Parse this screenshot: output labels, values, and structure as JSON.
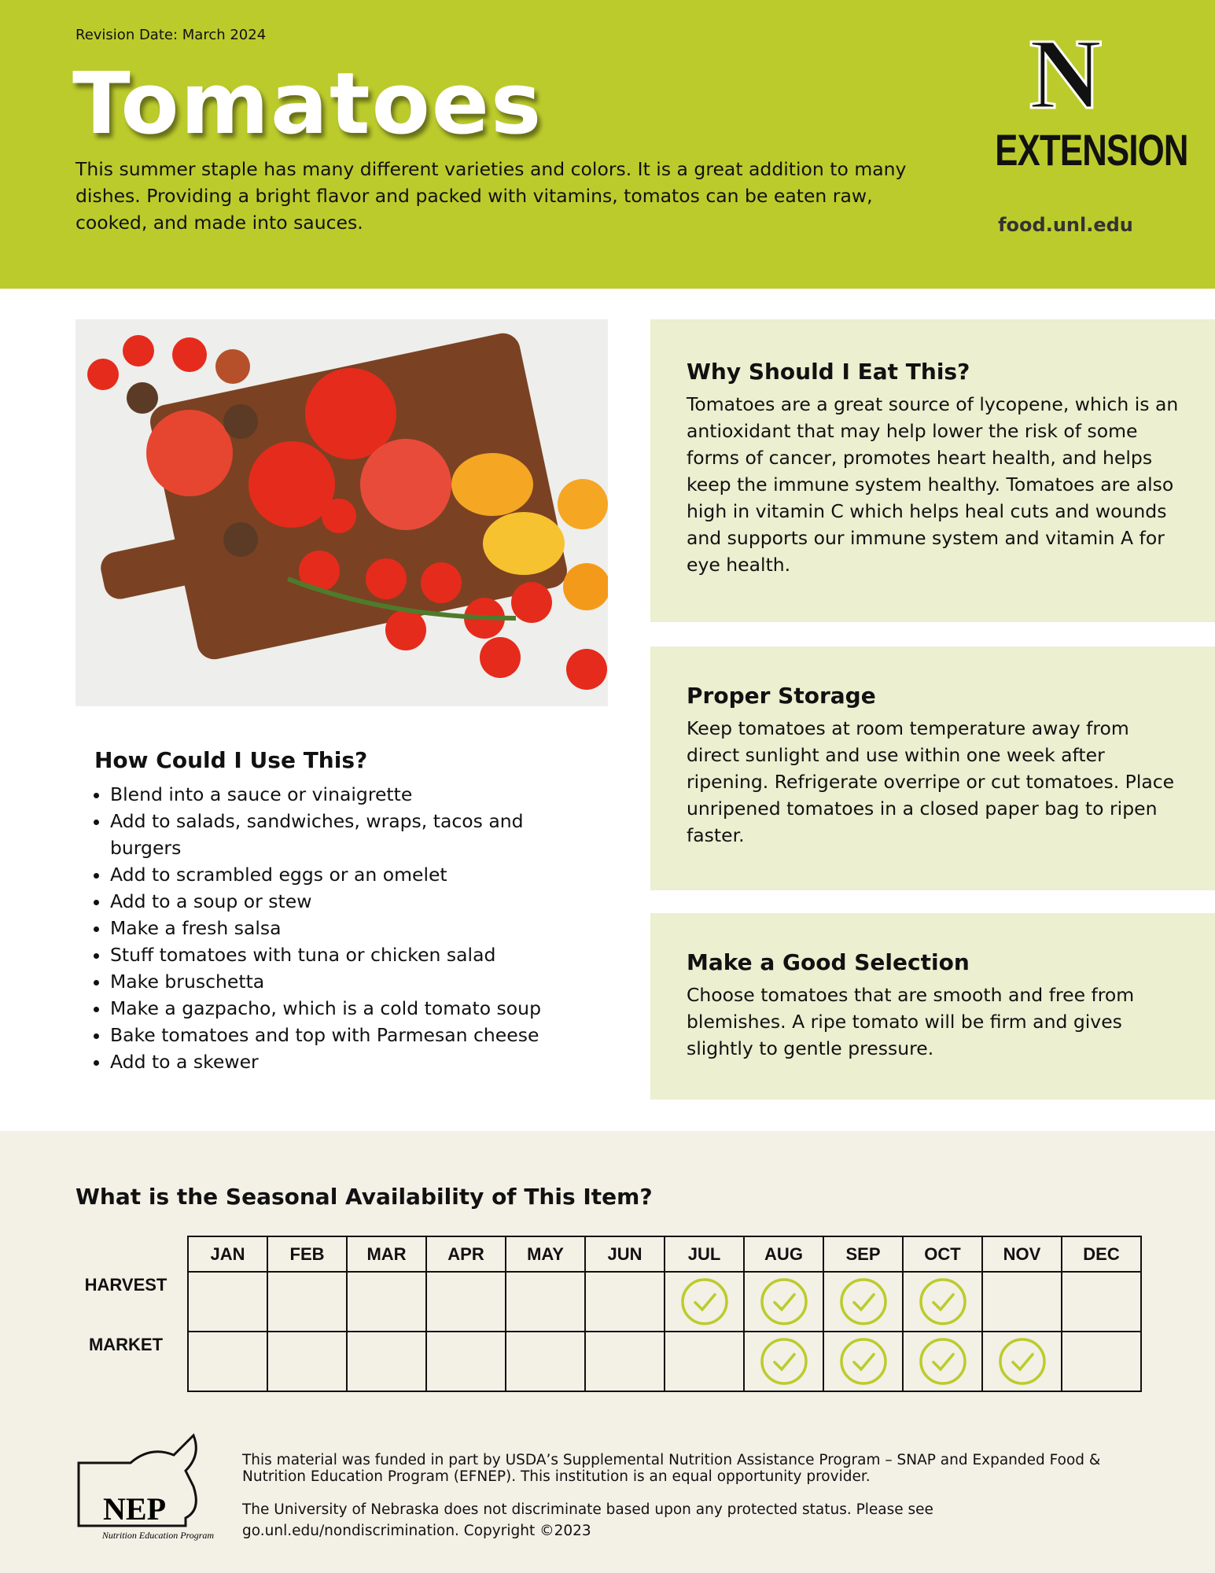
{
  "header": {
    "revision": "Revision Date: March 2024",
    "title": "Tomatoes",
    "intro": "This summer staple has many different varieties and colors. It is a great addition to many dishes. Providing a bright flavor and packed with vitamins, tomatos can be eaten raw, cooked, and made into sauces.",
    "logo_letter": "N",
    "logo_text": "EXTENSION",
    "url": "food.unl.edu"
  },
  "use": {
    "title": "How Could I Use This?",
    "items": [
      "Blend into a sauce or vinaigrette",
      "Add to salads, sandwiches, wraps, tacos and burgers",
      "Add to scrambled eggs or an omelet",
      "Add to a soup or stew",
      "Make a fresh salsa",
      "Stuff tomatoes with tuna or chicken salad",
      "Make bruschetta",
      "Make a gazpacho, which is a cold tomato soup",
      "Bake tomatoes and top with Parmesan cheese",
      "Add to a skewer"
    ]
  },
  "why": {
    "title": "Why Should I Eat This?",
    "text": "Tomatoes are a great source of lycopene, which is an antioxidant that may help lower the risk of some forms of cancer, promotes heart health, and helps keep the immune system healthy. Tomatoes are also high in vitamin C which helps heal cuts and wounds and supports our immune system and vitamin A for eye health."
  },
  "storage": {
    "title": "Proper Storage",
    "text": "Keep tomatoes at room temperature away from direct sunlight and use within one week after ripening. Refrigerate overripe or cut tomatoes. Place unripened tomatoes in a closed paper bag to ripen faster."
  },
  "selection": {
    "title": "Make a Good Selection",
    "text": "Choose tomatoes that are smooth and free from blemishes. A ripe tomato will be firm and gives slightly to gentle pressure."
  },
  "seasonal": {
    "title": "What is the Seasonal Availability of This Item?",
    "months": [
      "JAN",
      "FEB",
      "MAR",
      "APR",
      "MAY",
      "JUN",
      "JUL",
      "AUG",
      "SEP",
      "OCT",
      "NOV",
      "DEC"
    ],
    "rows": [
      {
        "label": "HARVEST",
        "available": [
          false,
          false,
          false,
          false,
          false,
          false,
          true,
          true,
          true,
          true,
          false,
          false
        ]
      },
      {
        "label": "MARKET",
        "available": [
          false,
          false,
          false,
          false,
          false,
          false,
          false,
          true,
          true,
          true,
          true,
          false
        ]
      }
    ]
  },
  "footer": {
    "logo_text": "NEP",
    "logo_caption": "Nutrition Education Program",
    "funding": "This material was funded in part by USDA’s Supplemental Nutrition Assistance Program – SNAP and Expanded Food & Nutrition Education Program (EFNEP).  This institution is an equal opportunity provider.",
    "nondiscrimination": "The University of Nebraska does not discriminate based upon any protected status. Please see go.unl.edu/nondiscrimination. Copyright ©2023"
  }
}
